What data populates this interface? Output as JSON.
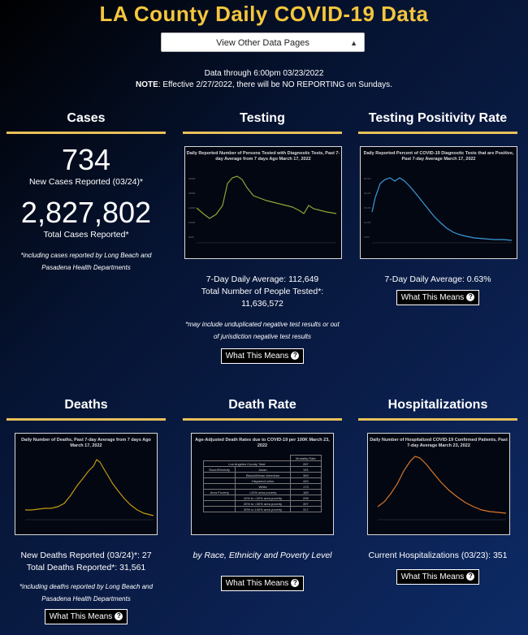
{
  "title": "LA County Daily COVID-19 Data",
  "nav_select": {
    "value": "View Other Data Pages"
  },
  "notice": {
    "line1": "Data through 6:00pm 03/23/2022",
    "note_label": "NOTE",
    "line2": ": Effective 2/27/2022, there will be NO REPORTING on Sundays."
  },
  "cases": {
    "title": "Cases",
    "new_count": "734",
    "new_label": "New Cases Reported (03/24)*",
    "total_count": "2,827,802",
    "total_label": "Total Cases Reported*",
    "footnote": "*including cases reported by Long Beach and Pasadena Health Departments"
  },
  "testing": {
    "title": "Testing",
    "chart_title": "Daily Reported Number of Persons Tested with Diagnostic Tests, Past 7-day Average from 7 days Ago March 17, 2022",
    "avg": "7-Day Daily Average: 112,649",
    "total_label": "Total Number of People Tested*:",
    "total": "11,636,572",
    "footnote": "*may include unduplicated negative test results or out of jurisdiction negative test results",
    "button": "What This Means"
  },
  "positivity": {
    "title": "Testing Positivity Rate",
    "chart_title": "Daily Reported Percent of COVID-19 Diagnostic Tests that are Positive, Past 7-day Average March 17, 2022",
    "avg": "7-Day Daily Average: 0.63%",
    "button": "What This Means"
  },
  "deaths": {
    "title": "Deaths",
    "chart_title": "Daily Number of Deaths, Past 7-day Average from 7 days Ago March 17, 2022",
    "new": "New Deaths Reported (03/24)*: 27",
    "total": "Total Deaths Reported*: 31,561",
    "footnote": "*including deaths reported by Long Beach and Pasadena Health Departments",
    "button": "What This Means"
  },
  "death_rate": {
    "title": "Death Rate",
    "chart_title": "Age-Adjusted Death Rates due to COVID-19 per 100K March 23, 2022",
    "caption": "by Race, Ethnicity and Poverty Level",
    "button": "What This Means",
    "table": {
      "header": [
        "",
        "Mortality Rate"
      ],
      "total_row": [
        "Los Angeles County Total",
        "287"
      ],
      "rows": [
        [
          "Race/Ethnicity",
          "Asian",
          "191"
        ],
        [
          "",
          "Black/African American",
          "369"
        ],
        [
          "",
          "Hispanic/Latino",
          "440"
        ],
        [
          "",
          "White",
          "173"
        ],
        [
          "Area Poverty",
          "<10% area poverty",
          "189"
        ],
        [
          "",
          "10% to <20% area poverty",
          "296"
        ],
        [
          "",
          "20% to <30% area poverty",
          "397"
        ],
        [
          "",
          "30% to 100% area poverty",
          "317"
        ]
      ]
    }
  },
  "hospitalizations": {
    "title": "Hospitalizations",
    "chart_title": "Daily Number of Hospitalized COVID-19 Confirmed Patients, Past 7-day Average March 23, 2022",
    "current": "Current Hospitalizations (03/23): 351",
    "button": "What This Means"
  },
  "colors": {
    "accent": "#f4c63d",
    "rule": "#e8c15a",
    "testing_line": "#8fa532",
    "positivity_line": "#3a9ad9",
    "deaths_line": "#c29a10",
    "hosp_line": "#d9772b"
  }
}
